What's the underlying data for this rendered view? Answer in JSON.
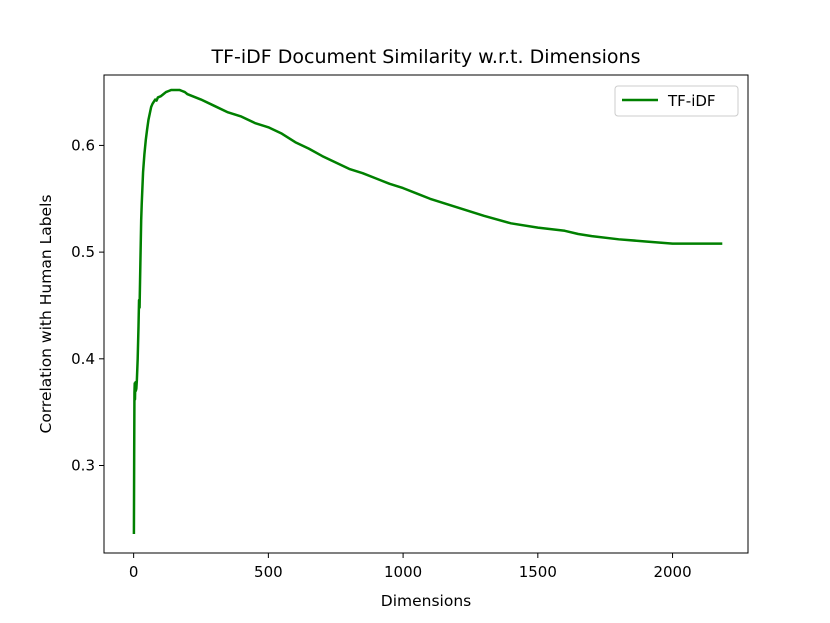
{
  "chart_data": {
    "type": "line",
    "title": "TF-iDF Document Similarity w.r.t. Dimensions",
    "xlabel": "Dimensions",
    "ylabel": "Correlation with Human Labels",
    "xlim": [
      -110,
      2280
    ],
    "ylim": [
      0.218,
      0.666
    ],
    "xticks": [
      0,
      500,
      1000,
      1500,
      2000
    ],
    "yticks": [
      0.3,
      0.4,
      0.5,
      0.6
    ],
    "xtick_labels": [
      "0",
      "500",
      "1000",
      "1500",
      "2000"
    ],
    "ytick_labels": [
      "0.3",
      "0.4",
      "0.5",
      "0.6"
    ],
    "grid": false,
    "legend": {
      "position": "top-right",
      "entries": [
        "TF-iDF"
      ]
    },
    "series": [
      {
        "name": "TF-iDF",
        "color": "#008000",
        "x": [
          1,
          2,
          3,
          4,
          5,
          6,
          7,
          8,
          10,
          12,
          15,
          18,
          20,
          22,
          25,
          28,
          30,
          35,
          40,
          45,
          50,
          55,
          60,
          65,
          70,
          75,
          80,
          85,
          90,
          100,
          110,
          120,
          130,
          140,
          150,
          160,
          170,
          180,
          190,
          200,
          250,
          300,
          350,
          400,
          450,
          500,
          550,
          600,
          650,
          700,
          750,
          800,
          850,
          900,
          950,
          1000,
          1050,
          1100,
          1200,
          1300,
          1400,
          1500,
          1600,
          1650,
          1700,
          1800,
          1900,
          2000,
          2100,
          2180
        ],
        "y": [
          0.237,
          0.31,
          0.368,
          0.377,
          0.362,
          0.375,
          0.378,
          0.37,
          0.372,
          0.38,
          0.4,
          0.43,
          0.455,
          0.448,
          0.49,
          0.53,
          0.545,
          0.575,
          0.592,
          0.605,
          0.615,
          0.624,
          0.63,
          0.636,
          0.639,
          0.641,
          0.643,
          0.642,
          0.645,
          0.646,
          0.648,
          0.65,
          0.651,
          0.652,
          0.652,
          0.652,
          0.652,
          0.651,
          0.65,
          0.648,
          0.643,
          0.637,
          0.631,
          0.627,
          0.621,
          0.617,
          0.611,
          0.603,
          0.597,
          0.59,
          0.584,
          0.578,
          0.574,
          0.569,
          0.564,
          0.56,
          0.555,
          0.55,
          0.542,
          0.534,
          0.527,
          0.523,
          0.52,
          0.517,
          0.515,
          0.512,
          0.51,
          0.508,
          0.508,
          0.508
        ]
      }
    ]
  }
}
